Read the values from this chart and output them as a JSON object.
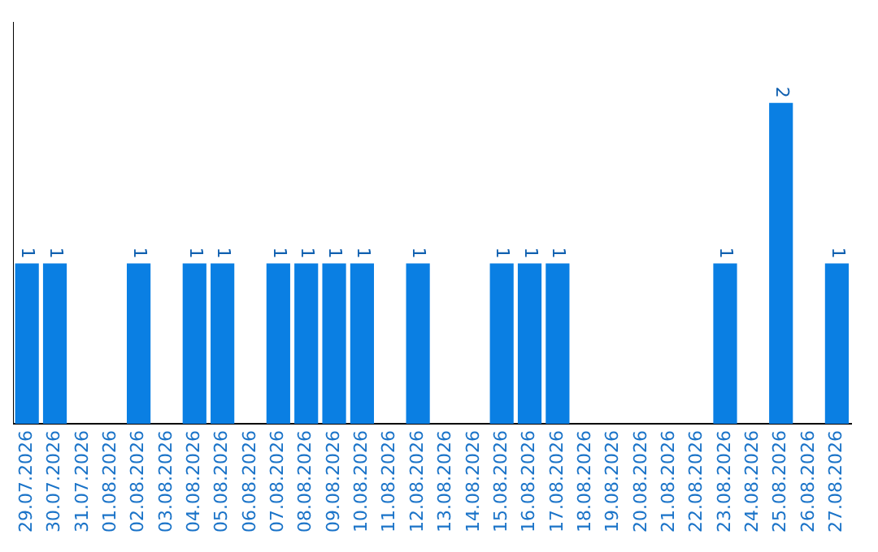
{
  "chart_data": {
    "type": "bar",
    "categories": [
      "29.07.2026",
      "30.07.2026",
      "31.07.2026",
      "01.08.2026",
      "02.08.2026",
      "03.08.2026",
      "04.08.2026",
      "05.08.2026",
      "06.08.2026",
      "07.08.2026",
      "08.08.2026",
      "09.08.2026",
      "10.08.2026",
      "11.08.2026",
      "12.08.2026",
      "13.08.2026",
      "14.08.2026",
      "15.08.2026",
      "16.08.2026",
      "17.08.2026",
      "18.08.2026",
      "19.08.2026",
      "20.08.2026",
      "21.08.2026",
      "22.08.2026",
      "23.08.2026",
      "24.08.2026",
      "25.08.2026",
      "26.08.2026",
      "27.08.2026"
    ],
    "values": [
      1,
      1,
      0,
      0,
      1,
      0,
      1,
      1,
      0,
      1,
      1,
      1,
      1,
      0,
      1,
      0,
      0,
      1,
      1,
      1,
      0,
      0,
      0,
      0,
      0,
      1,
      0,
      2,
      0,
      1
    ],
    "value_labels": [
      "1",
      "1",
      null,
      null,
      "1",
      null,
      "1",
      "1",
      null,
      "1",
      "1",
      "1",
      "1",
      null,
      "1",
      null,
      null,
      "1",
      "1",
      "1",
      null,
      null,
      null,
      null,
      null,
      "1",
      null,
      "2",
      null,
      "1"
    ],
    "color": "#0a7fe3",
    "grid": false,
    "legend": false
  }
}
